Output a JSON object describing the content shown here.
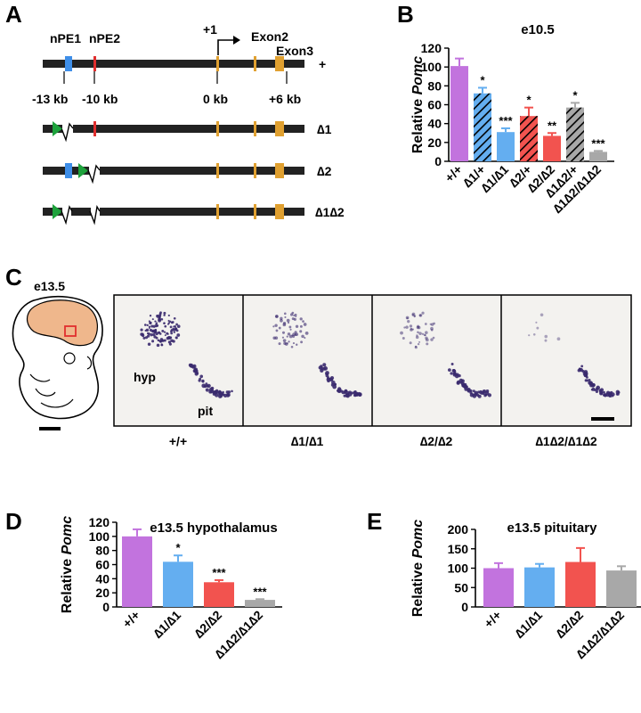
{
  "figure": {
    "panel_labels": {
      "a": "A",
      "b": "B",
      "c": "C",
      "d": "D",
      "e": "E"
    },
    "colors": {
      "wt": "#c273de",
      "d1": "#64aef0",
      "d2": "#f2534f",
      "d12": "#a8a8a8",
      "nPE1": "#3e8ee8",
      "nPE2": "#e02e2e",
      "exon": "#e0a030",
      "loxp": "#1ea23c",
      "tissue": "#efb78c",
      "stain": "#3a2a6e"
    }
  },
  "panelA": {
    "nPE1_label": "nPE1",
    "nPE2_label": "nPE2",
    "tss_label": "+1",
    "exon2_label": "Exon2",
    "exon3_label": "Exon3",
    "positions": [
      "-13 kb",
      "-10 kb",
      "0 kb",
      "+6 kb"
    ],
    "alleles": [
      "+",
      "∆1",
      "∆2",
      "∆1∆2"
    ]
  },
  "panelC": {
    "stage_label": "e13.5",
    "hyp_label": "hyp",
    "pit_label": "pit",
    "genotypes": [
      "+/+",
      "∆1/∆1",
      "∆2/∆2",
      "∆1∆2/∆1∆2"
    ]
  },
  "chart_data": [
    {
      "id": "B",
      "type": "bar",
      "title": "e10.5",
      "ylabel_prefix": "Relative ",
      "ylabel_italic": "Pomc",
      "ylim": [
        0,
        120
      ],
      "yticks": [
        0,
        20,
        40,
        60,
        80,
        100,
        120
      ],
      "categories": [
        "+/+",
        "∆1/+",
        "∆1/∆1",
        "∆2/+",
        "∆2/∆2",
        "∆1∆2/+",
        "∆1∆2/∆1∆2"
      ],
      "values": [
        101,
        72,
        31,
        48,
        27,
        57,
        10
      ],
      "errors": [
        8,
        6,
        4,
        9,
        3,
        5,
        1
      ],
      "significance": [
        "",
        "*",
        "***",
        "*",
        "**",
        "*",
        "***"
      ],
      "hatched": [
        false,
        true,
        false,
        true,
        false,
        true,
        false
      ],
      "color_keys": [
        "wt",
        "d1",
        "d1",
        "d2",
        "d2",
        "d12",
        "d12"
      ]
    },
    {
      "id": "D",
      "type": "bar",
      "title": "e13.5 hypothalamus",
      "ylabel_prefix": "Relative ",
      "ylabel_italic": "Pomc",
      "ylim": [
        0,
        120
      ],
      "yticks": [
        0,
        20,
        40,
        60,
        80,
        100,
        120
      ],
      "categories": [
        "+/+",
        "∆1/∆1",
        "∆2/∆2",
        "∆1∆2/∆1∆2"
      ],
      "values": [
        100,
        64,
        35,
        10
      ],
      "errors": [
        10,
        9,
        3,
        1
      ],
      "significance": [
        "",
        "*",
        "***",
        "***"
      ],
      "hatched": [
        false,
        false,
        false,
        false
      ],
      "color_keys": [
        "wt",
        "d1",
        "d2",
        "d12"
      ]
    },
    {
      "id": "E",
      "type": "bar",
      "title": "e13.5 pituitary",
      "ylabel_prefix": "Relative ",
      "ylabel_italic": "Pomc",
      "ylim": [
        0,
        200
      ],
      "yticks": [
        0,
        50,
        100,
        150,
        200
      ],
      "categories": [
        "+/+",
        "∆1/∆1",
        "∆2/∆2",
        "∆1∆2/∆1∆2"
      ],
      "values": [
        100,
        102,
        116,
        94
      ],
      "errors": [
        13,
        9,
        36,
        11
      ],
      "significance": [
        "",
        "",
        "",
        ""
      ],
      "hatched": [
        false,
        false,
        false,
        false
      ],
      "color_keys": [
        "wt",
        "d1",
        "d2",
        "d12"
      ]
    }
  ]
}
